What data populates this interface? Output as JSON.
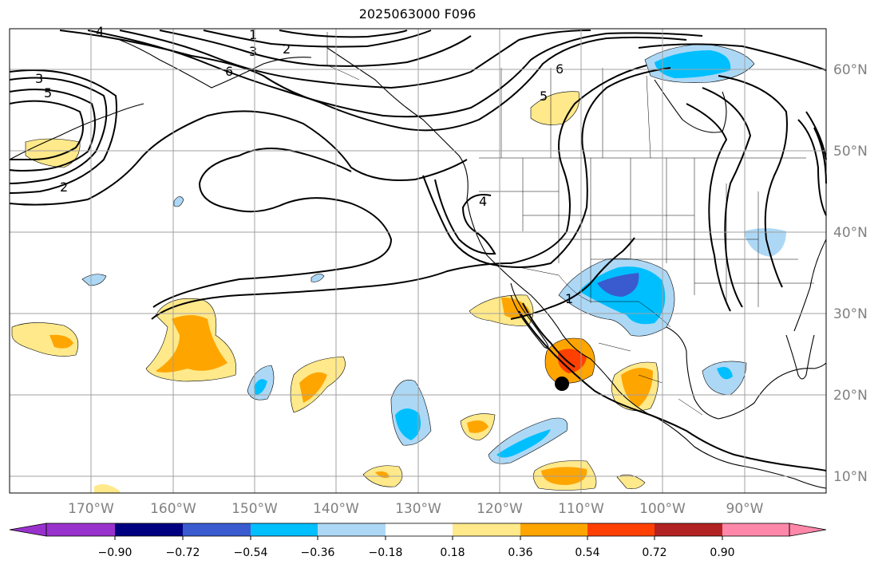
{
  "title": "2025063000 F096",
  "map": {
    "lon_range": [
      -180,
      -80
    ],
    "lat_range": [
      8,
      66
    ],
    "lon_ticks": [
      "170°W",
      "160°W",
      "150°W",
      "140°W",
      "130°W",
      "120°W",
      "110°W",
      "100°W",
      "90°W"
    ],
    "lat_ticks": [
      "60°N",
      "50°N",
      "40°N",
      "30°N",
      "20°N",
      "10°N"
    ],
    "grid": true,
    "contour_color": "#000000",
    "contour_labels": [
      "1",
      "2",
      "3",
      "4",
      "5",
      "6",
      "1",
      "2",
      "3",
      "4",
      "5",
      "6"
    ],
    "storm_marker": {
      "label": "",
      "lon": -112.7,
      "lat": 21.5
    }
  },
  "colorbar": {
    "ticks": [
      "−0.90",
      "−0.72",
      "−0.54",
      "−0.36",
      "−0.18",
      "0.18",
      "0.36",
      "0.54",
      "0.72",
      "0.90"
    ],
    "colors": [
      "#9932cc",
      "#000080",
      "#3a5bd0",
      "#00bfff",
      "#add8f5",
      "#ffffff",
      "#ffe98a",
      "#ffa500",
      "#ff4000",
      "#b22222",
      "#ff88aa"
    ],
    "extend": "both"
  }
}
